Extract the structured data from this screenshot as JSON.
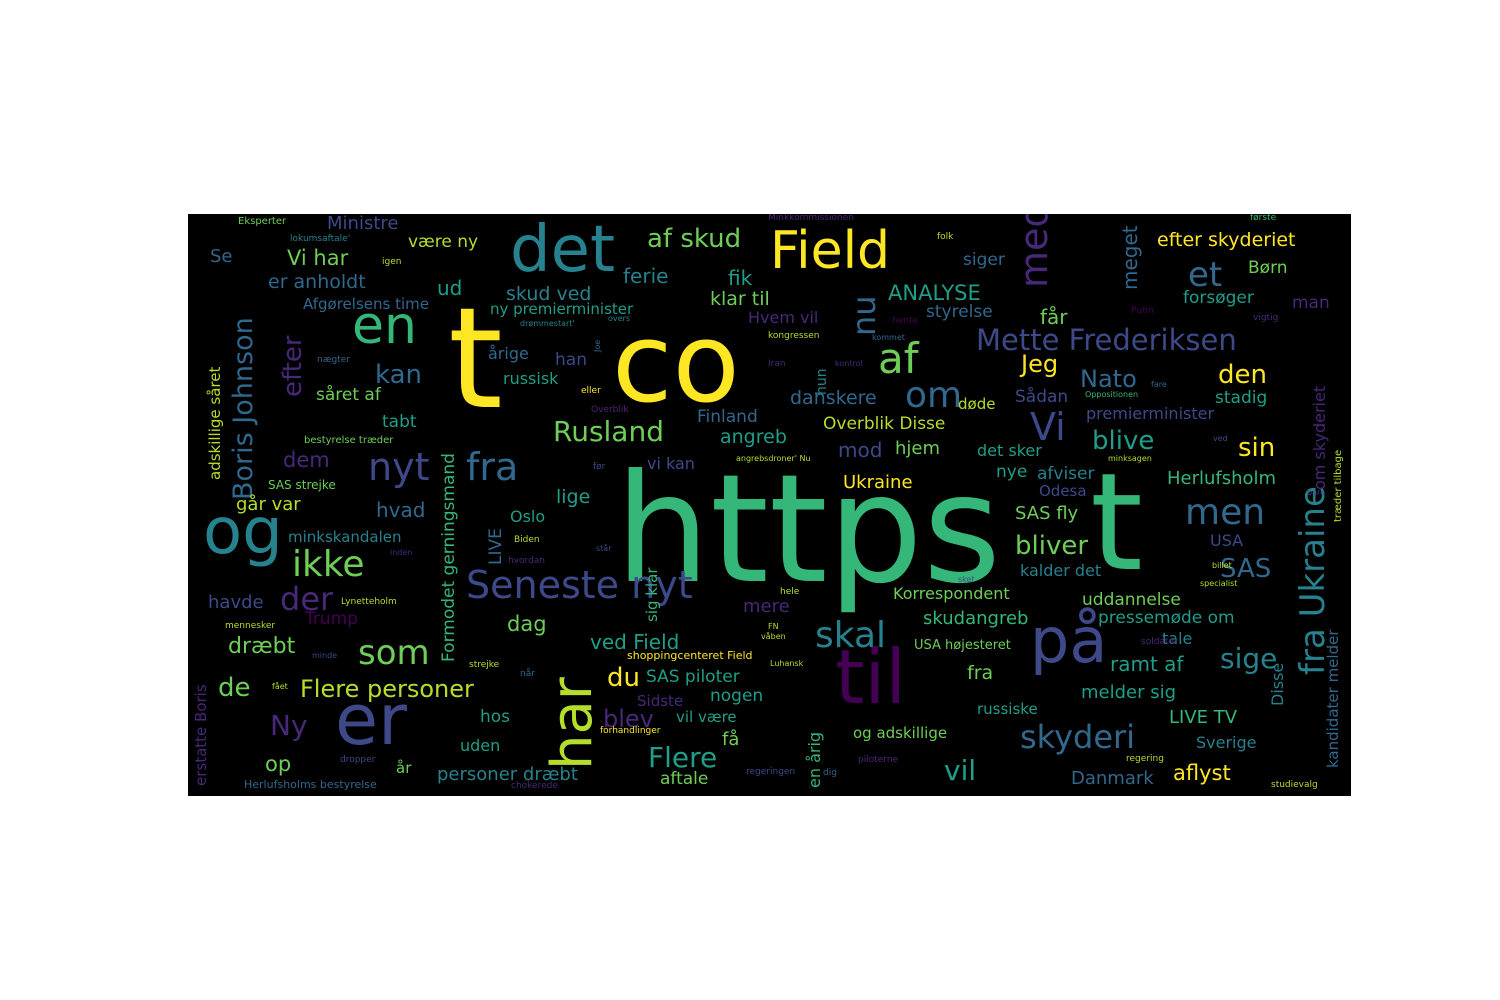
{
  "palette": {
    "background": "#000000",
    "yellow": "#fde725",
    "lime": "#b5de2b",
    "green": "#6ece58",
    "teal": "#35b779",
    "cyan": "#1f9e89",
    "blue": "#26828e",
    "slate": "#31688e",
    "indigo": "#3e4989",
    "violet": "#482878",
    "purple": "#440154"
  },
  "words": {
    "https": "https",
    "t_big": "t",
    "t_small": "t",
    "co": "co",
    "det": "det",
    "field": "Field",
    "en": "en",
    "og": "og",
    "er": "er",
    "til": "til",
    "paa": "på",
    "har": "har",
    "af": "af",
    "af_skud": "af skud",
    "nyt": "nyt",
    "fra": "fra",
    "ikke": "ikke",
    "seneste_nyt": "Seneste nyt",
    "skal": "skal",
    "som": "som",
    "med": "med",
    "et": "et",
    "nu": "nu",
    "om": "om",
    "vi_big": "Vi",
    "mette_frederiksen": "Mette Frederiksen",
    "fra_ukraine": "fra Ukraine",
    "boris_johnson": "Boris Johnson",
    "efter": "efter",
    "rusland": "Rusland",
    "men": "men",
    "skyderi": "skyderi",
    "der": "der",
    "kan": "kan",
    "jeg": "Jeg",
    "nato": "Nato",
    "den": "den",
    "blive": "blive",
    "sin": "sin",
    "bliver": "bliver",
    "sas": "SAS",
    "sige": "sige",
    "du": "du",
    "flere": "Flere",
    "vil": "vil",
    "de": "de",
    "ny": "Ny",
    "mod": "mod",
    "blev": "blev",
    "flere_personer": "Flere personer",
    "ministre": "Ministre",
    "vaere_ny": "være ny",
    "ferie": "ferie",
    "fik": "fik",
    "analyse": "ANALYSE",
    "meget": "meget",
    "efter_skyderiet": "efter skyderiet",
    "boern": "Børn",
    "siger": "siger",
    "forsoeger": "forsøger",
    "man": "man",
    "vi_har": "Vi har",
    "er_anholdt": "er anholdt",
    "ud": "ud",
    "skud_ved": "skud ved",
    "klar_til": "klar til",
    "faar": "får",
    "styrelse": "styrelse",
    "afgoerelsens_time": "Afgørelsens time",
    "ny_premierminister": "ny premierminister",
    "hvem_vil": "Hvem vil",
    "aarige": "årige",
    "han": "han",
    "russisk": "russisk",
    "saaret_af": "såret af",
    "danskere": "danskere",
    "doede": "døde",
    "saadan": "Sådan",
    "stadig": "stadig",
    "premierminister": "premierminister",
    "tabt": "tabt",
    "finland": "Finland",
    "angreb": "angreb",
    "overblik_disse": "Overblik Disse",
    "hjem": "hjem",
    "det_sker": "det sker",
    "dem": "dem",
    "vi_kan": "vi kan",
    "nye": "nye",
    "afviser": "afviser",
    "herlufsholm": "Herlufsholm",
    "ukraine": "Ukraine",
    "odesa": "Odesa",
    "gaar_var": "går var",
    "hvad": "hvad",
    "lige": "lige",
    "oslo": "Oslo",
    "sas_fly": "SAS fly",
    "minkskandalen": "minkskandalen",
    "live": "LIVE",
    "usa": "USA",
    "kalder_det": "kalder det",
    "sas_right": "SAS",
    "havde": "havde",
    "trump": "Trump",
    "dag": "dag",
    "mere": "mere",
    "korrespondent": "Korrespondent",
    "uddannelse": "uddannelse",
    "skudangreb": "skudangreb",
    "pressemoede_om": "pressemøde om",
    "draebt": "dræbt",
    "ved_field": "ved Field",
    "usa_hoejesteret": "USA højesteret",
    "tale": "tale",
    "ramt_af": "ramt af",
    "fra_small": "fra",
    "sas_piloter": "SAS piloter",
    "nogen": "nogen",
    "melder_sig": "melder sig",
    "sidste": "Sidste",
    "vil_vaere": "vil være",
    "russiske": "russiske",
    "hos": "hos",
    "og_adskillige": "og adskillige",
    "live_tv": "LIVE TV",
    "uden": "uden",
    "faa": "få",
    "sverige": "Sverige",
    "op": "op",
    "aar": "år",
    "personer_draebt": "personer dræbt",
    "aftale": "aftale",
    "danmark": "Danmark",
    "aflyst": "aflyst",
    "adskillige_saaret": "adskillige såret",
    "formodet_gerningsmand": "Formodet gerningsmand",
    "sig_klar": "sig klar",
    "en_aarig": "en årig",
    "hun": "hun",
    "disse": "Disse",
    "om_skyderiet": "om skyderiet",
    "kandidater_melder": "kandidater melder",
    "traeder_tilbage": "træder tilbage",
    "erstatte_boris": "erstatte Boris",
    "se": "Se",
    "shoppingcenteret_field": "shoppingcenteret Field",
    "sas_strejke": "SAS strejke",
    "bestyrelse_traeder": "bestyrelse træder",
    "eksperter": "Eksperter",
    "lokumsaftale": "lokumsaftale'",
    "igen": "igen",
    "minkkommissionen": "Minkkommissionen",
    "foerste": "første",
    "folk": "folk",
    "drommestart": "drømmestart'",
    "overs": "overs",
    "hente": "hente",
    "putin": "Putin",
    "vigtig": "vigtig",
    "kongressen": "kongressen",
    "kommet": "kommet",
    "naegter": "nægter",
    "joe": "Joe",
    "iran": "Iran",
    "kontrol": "kontrol",
    "eller": "eller",
    "fare": "fare",
    "oppositionen": "Oppositionen",
    "overblik": "Overblik",
    "ved": "ved",
    "angrebsdroner": "angrebsdroner' Nu",
    "minksagen": "minksagen",
    "foer": "før",
    "bare": "bare",
    "biden": "Biden",
    "hvordan": "hvordan",
    "staar": "står",
    "inden": "inden",
    "billet": "billet",
    "sket": "sket",
    "specialist": "specialist",
    "lynetteholm": "Lynetteholm",
    "hele": "hele",
    "mennesker": "mennesker",
    "fn": "FN",
    "vaaben": "våben",
    "soldater": "soldater",
    "minde": "minde",
    "luhansk": "Luhansk",
    "strejke": "strejke",
    "naar": "når",
    "faaet": "fået",
    "forhandlinger": "forhandlinger",
    "dropper": "dropper",
    "regeringen": "regeringen",
    "dig": "dig",
    "piloterne": "piloterne",
    "regering": "regering",
    "chokerede": "chokerede",
    "herlufsholms_bestyrelse": "Herlufsholms bestyrelse",
    "studievalg": "studievalg"
  }
}
